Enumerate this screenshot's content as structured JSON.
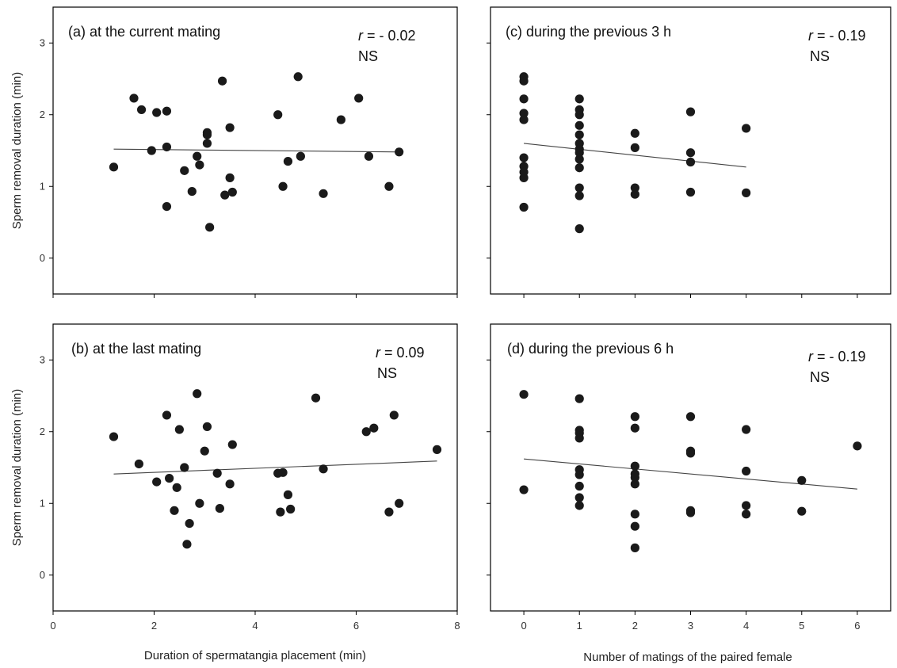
{
  "chart_data": [
    {
      "id": "a",
      "type": "scatter",
      "title": "(a) at the current mating",
      "stat_r_prefix": "r",
      "stat_r_value": " = - 0.02",
      "stat_sig": "NS",
      "xlabel": "",
      "ylabel": "Sperm removal duration (min)",
      "xlim": [
        0,
        8
      ],
      "ylim": [
        -0.5,
        3.5
      ],
      "xticks": [],
      "yticks": [
        "0",
        "1",
        "2",
        "3"
      ],
      "fit": [
        [
          1.2,
          1.52
        ],
        [
          6.9,
          1.48
        ]
      ],
      "points": [
        [
          1.2,
          1.27
        ],
        [
          1.6,
          2.23
        ],
        [
          1.75,
          2.07
        ],
        [
          1.95,
          1.5
        ],
        [
          2.05,
          2.03
        ],
        [
          2.25,
          2.05
        ],
        [
          2.25,
          1.55
        ],
        [
          2.25,
          0.72
        ],
        [
          2.6,
          1.22
        ],
        [
          2.75,
          0.93
        ],
        [
          2.85,
          1.42
        ],
        [
          2.9,
          1.3
        ],
        [
          3.05,
          1.75
        ],
        [
          3.05,
          1.72
        ],
        [
          3.05,
          1.6
        ],
        [
          3.1,
          0.43
        ],
        [
          3.35,
          2.47
        ],
        [
          3.4,
          0.88
        ],
        [
          3.5,
          1.82
        ],
        [
          3.5,
          1.12
        ],
        [
          3.55,
          0.92
        ],
        [
          4.45,
          2.0
        ],
        [
          4.55,
          1.0
        ],
        [
          4.65,
          1.35
        ],
        [
          4.85,
          2.53
        ],
        [
          4.9,
          1.42
        ],
        [
          5.35,
          0.9
        ],
        [
          5.7,
          1.93
        ],
        [
          6.05,
          2.23
        ],
        [
          6.25,
          1.42
        ],
        [
          6.65,
          1.0
        ],
        [
          6.85,
          1.48
        ]
      ]
    },
    {
      "id": "c",
      "type": "scatter",
      "title": "(c) during the previous 3 h",
      "stat_r_prefix": "r",
      "stat_r_value": " = - 0.19",
      "stat_sig": "NS",
      "xlabel": "",
      "ylabel": "",
      "xlim": [
        -0.6,
        6.6
      ],
      "ylim": [
        -0.5,
        3.5
      ],
      "xticks": [],
      "yticks": [],
      "fit": [
        [
          0,
          1.6
        ],
        [
          4,
          1.27
        ]
      ],
      "points": [
        [
          0,
          2.53
        ],
        [
          0,
          2.47
        ],
        [
          0,
          2.22
        ],
        [
          0,
          2.02
        ],
        [
          0,
          1.93
        ],
        [
          0,
          1.4
        ],
        [
          0,
          1.28
        ],
        [
          0,
          1.2
        ],
        [
          0,
          1.12
        ],
        [
          0,
          0.71
        ],
        [
          1,
          2.22
        ],
        [
          1,
          2.07
        ],
        [
          1,
          2.0
        ],
        [
          1,
          1.85
        ],
        [
          1,
          1.72
        ],
        [
          1,
          1.6
        ],
        [
          1,
          1.52
        ],
        [
          1,
          1.47
        ],
        [
          1,
          1.38
        ],
        [
          1,
          1.26
        ],
        [
          1,
          0.98
        ],
        [
          1,
          0.87
        ],
        [
          1,
          0.41
        ],
        [
          2,
          1.74
        ],
        [
          2,
          1.54
        ],
        [
          2,
          0.98
        ],
        [
          2,
          0.89
        ],
        [
          3,
          2.04
        ],
        [
          3,
          1.47
        ],
        [
          3,
          1.34
        ],
        [
          3,
          0.92
        ],
        [
          4,
          1.81
        ],
        [
          4,
          0.91
        ]
      ]
    },
    {
      "id": "b",
      "type": "scatter",
      "title": "(b) at the last mating",
      "stat_r_prefix": "r",
      "stat_r_value": " = 0.09",
      "stat_sig": "NS",
      "xlabel": "Duration of spermatangia placement (min)",
      "ylabel": "Sperm removal duration (min)",
      "xlim": [
        0,
        8
      ],
      "ylim": [
        -0.5,
        3.5
      ],
      "xticks": [
        "0",
        "2",
        "4",
        "6",
        "8"
      ],
      "yticks": [
        "0",
        "1",
        "2",
        "3"
      ],
      "fit": [
        [
          1.2,
          1.41
        ],
        [
          7.6,
          1.59
        ]
      ],
      "points": [
        [
          1.2,
          1.93
        ],
        [
          1.7,
          1.55
        ],
        [
          2.05,
          1.3
        ],
        [
          2.25,
          2.23
        ],
        [
          2.3,
          1.35
        ],
        [
          2.4,
          0.9
        ],
        [
          2.45,
          1.22
        ],
        [
          2.5,
          2.03
        ],
        [
          2.6,
          1.5
        ],
        [
          2.65,
          0.43
        ],
        [
          2.7,
          0.72
        ],
        [
          2.85,
          2.53
        ],
        [
          2.9,
          1.0
        ],
        [
          3.0,
          1.73
        ],
        [
          3.05,
          2.07
        ],
        [
          3.25,
          1.42
        ],
        [
          3.3,
          0.93
        ],
        [
          3.5,
          1.27
        ],
        [
          3.55,
          1.82
        ],
        [
          4.45,
          1.42
        ],
        [
          4.5,
          0.88
        ],
        [
          4.55,
          1.43
        ],
        [
          4.65,
          1.12
        ],
        [
          4.7,
          0.92
        ],
        [
          5.2,
          2.47
        ],
        [
          5.35,
          1.48
        ],
        [
          6.2,
          2.0
        ],
        [
          6.35,
          2.05
        ],
        [
          6.65,
          0.88
        ],
        [
          6.75,
          2.23
        ],
        [
          6.85,
          1.0
        ],
        [
          7.6,
          1.75
        ]
      ]
    },
    {
      "id": "d",
      "type": "scatter",
      "title": "(d) during the previous 6 h",
      "stat_r_prefix": "r",
      "stat_r_value": " = - 0.19",
      "stat_sig": "NS",
      "xlabel": "Number of matings of the paired female",
      "ylabel": "",
      "xlim": [
        -0.6,
        6.6
      ],
      "ylim": [
        -0.5,
        3.5
      ],
      "xticks": [
        "0",
        "1",
        "2",
        "3",
        "4",
        "5",
        "6"
      ],
      "yticks": [],
      "fit": [
        [
          0,
          1.62
        ],
        [
          6,
          1.2
        ]
      ],
      "points": [
        [
          0,
          2.52
        ],
        [
          0,
          1.19
        ],
        [
          1,
          2.46
        ],
        [
          1,
          2.02
        ],
        [
          1,
          1.98
        ],
        [
          1,
          1.91
        ],
        [
          1,
          1.47
        ],
        [
          1,
          1.4
        ],
        [
          1,
          1.24
        ],
        [
          1,
          1.08
        ],
        [
          1,
          0.97
        ],
        [
          2,
          2.21
        ],
        [
          2,
          2.05
        ],
        [
          2,
          1.52
        ],
        [
          2,
          1.41
        ],
        [
          2,
          1.36
        ],
        [
          2,
          1.27
        ],
        [
          2,
          0.85
        ],
        [
          2,
          0.68
        ],
        [
          2,
          0.38
        ],
        [
          3,
          2.21
        ],
        [
          3,
          1.73
        ],
        [
          3,
          1.7
        ],
        [
          3,
          0.9
        ],
        [
          3,
          0.87
        ],
        [
          4,
          2.03
        ],
        [
          4,
          1.45
        ],
        [
          4,
          0.97
        ],
        [
          4,
          0.85
        ],
        [
          5,
          1.32
        ],
        [
          5,
          0.89
        ],
        [
          6,
          1.8
        ]
      ]
    }
  ]
}
